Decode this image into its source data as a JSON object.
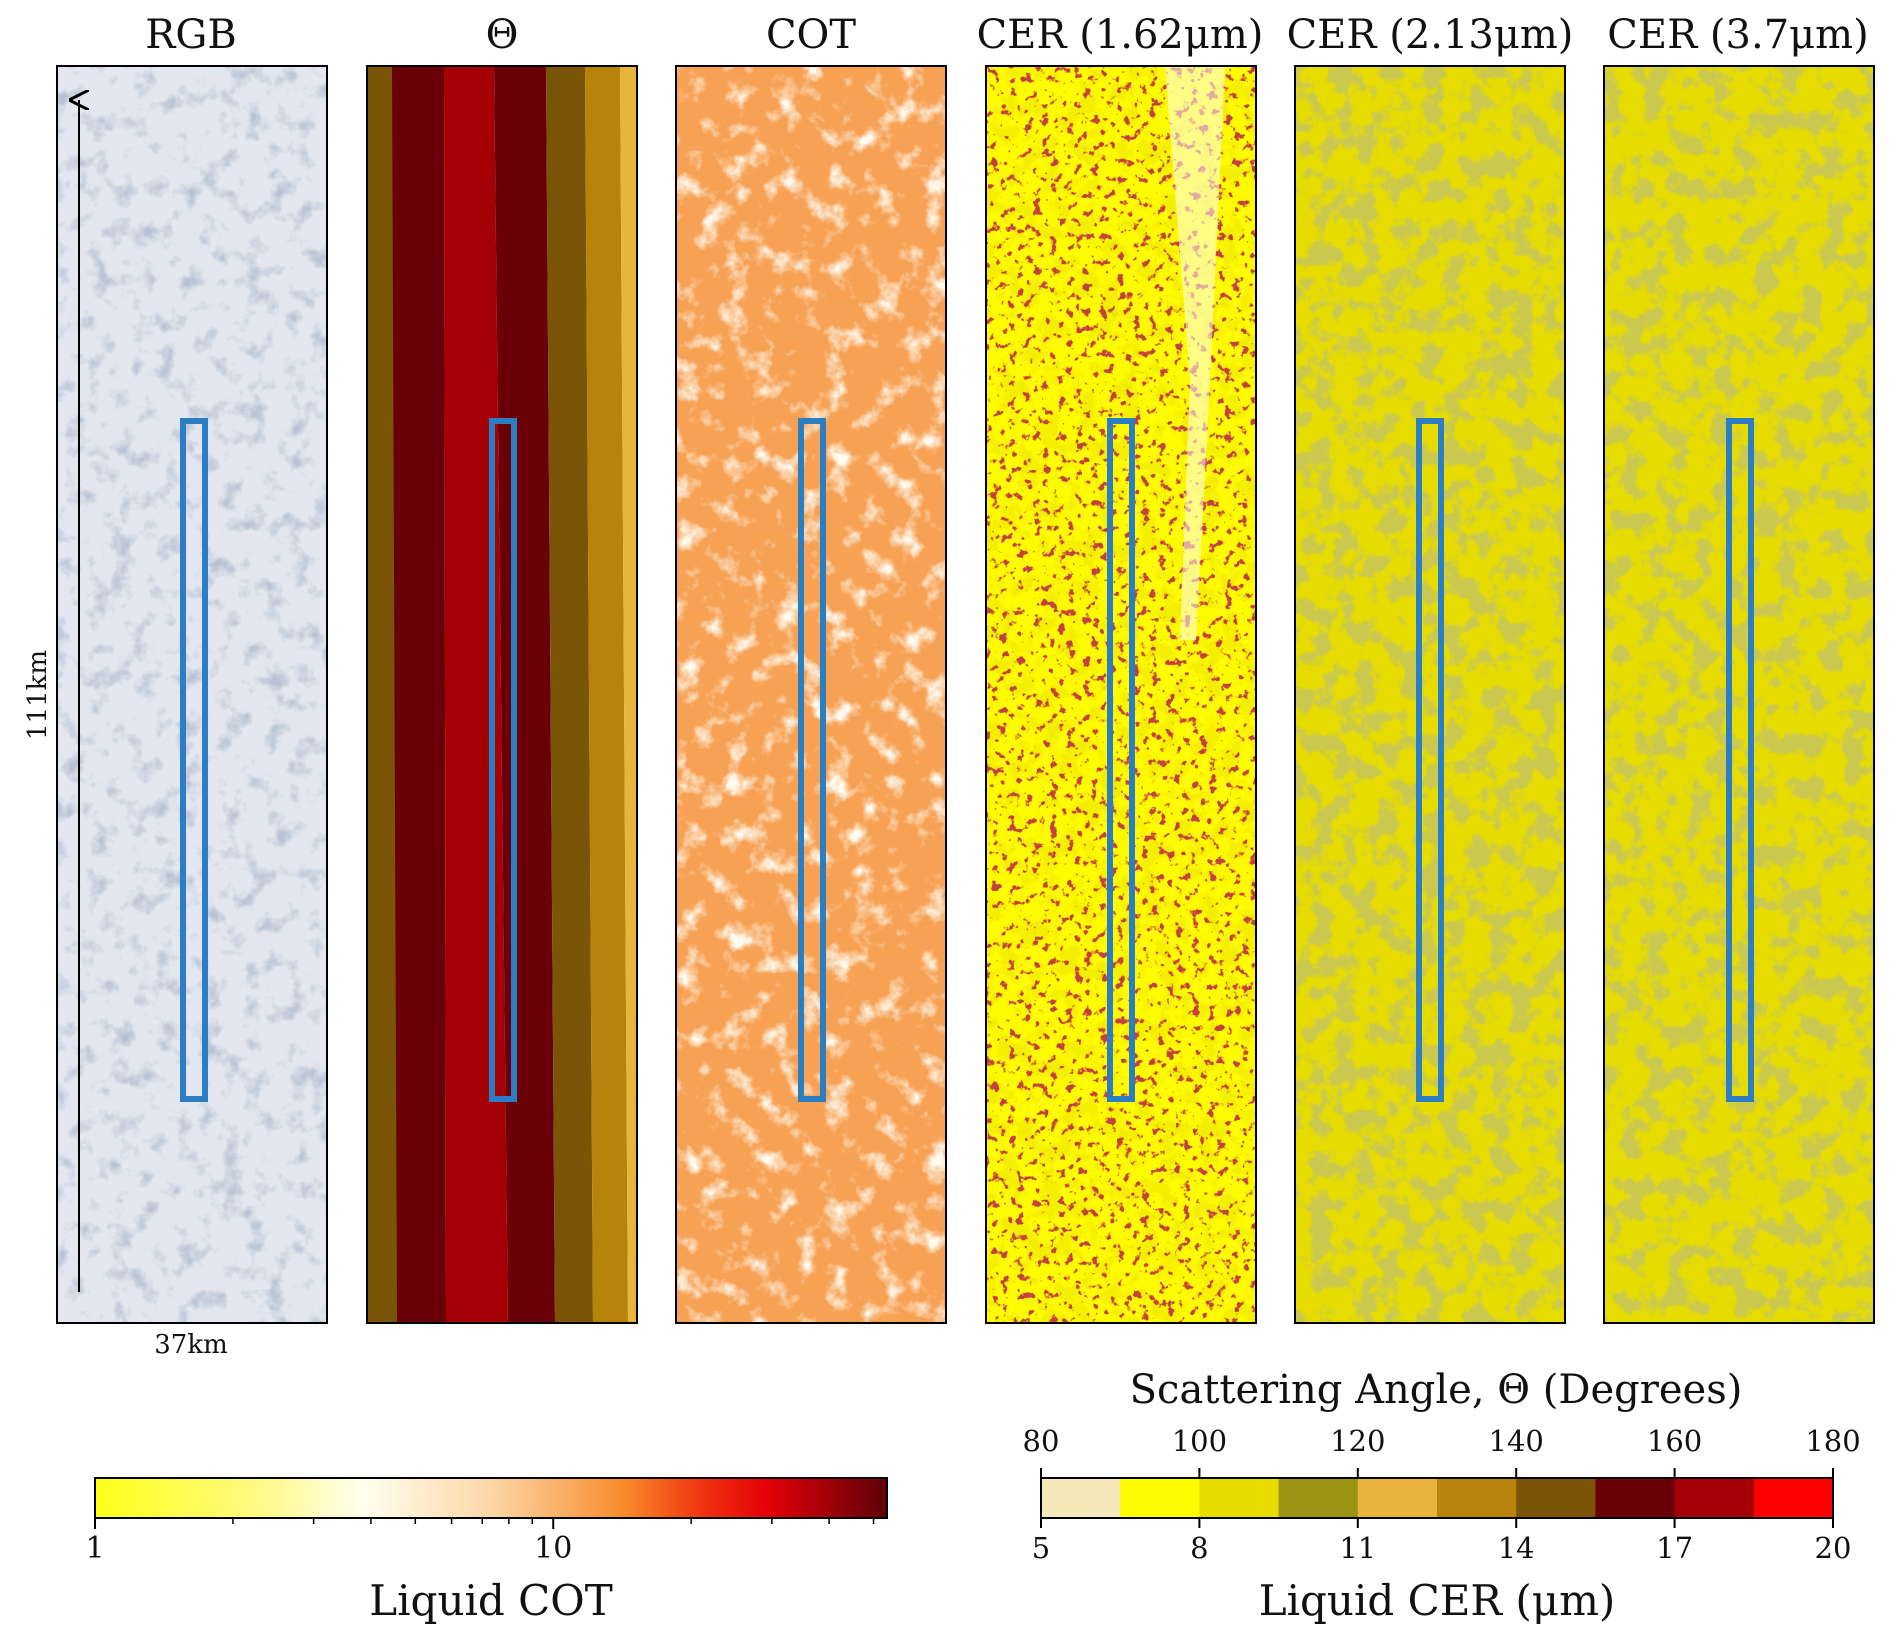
{
  "panels": [
    {
      "id": "rgb",
      "title": "RGB"
    },
    {
      "id": "theta",
      "title": "Θ"
    },
    {
      "id": "cot",
      "title": "COT"
    },
    {
      "id": "cer1",
      "title": "CER (1.62μm)"
    },
    {
      "id": "cer2",
      "title": "CER (2.13μm)"
    },
    {
      "id": "cer3",
      "title": "CER (3.7μm)"
    }
  ],
  "scale": {
    "vertical": "111km",
    "horizontal": "37km"
  },
  "colors": {
    "highlight_box": "#2a7ec1",
    "cot_colormap": [
      "#ffff1a",
      "#fffff0",
      "#fddcb0",
      "#f7902e",
      "#ef2a10",
      "#b8000c",
      "#5e0008"
    ],
    "cer_levels": [
      "#f5e9b9",
      "#fffb00",
      "#e6dc00",
      "#9a9314",
      "#e8b43c",
      "#b8830a",
      "#7a5508",
      "#6a0007",
      "#a60007",
      "#ff0000"
    ]
  },
  "cot_colorbar": {
    "label": "Liquid COT",
    "scale": "log",
    "ticks": [
      {
        "value": 1,
        "label": "1"
      },
      {
        "value": 10,
        "label": "10"
      }
    ]
  },
  "cer_colorbar": {
    "top_label": "Scattering Angle, Θ (Degrees)",
    "bottom_label": "Liquid CER (μm)",
    "top_ticks": [
      "80",
      "100",
      "120",
      "140",
      "160",
      "180"
    ],
    "bottom_ticks": [
      "5",
      "8",
      "11",
      "14",
      "17",
      "20"
    ]
  }
}
